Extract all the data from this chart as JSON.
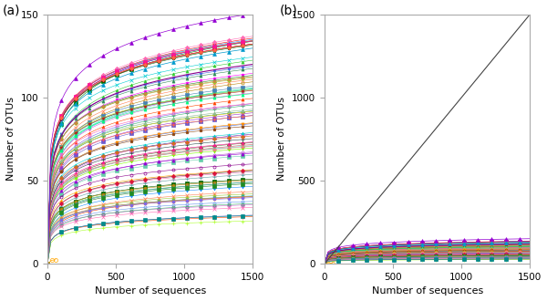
{
  "title_a": "(a)",
  "title_b": "(b)",
  "xlabel": "Number of sequences",
  "ylabel": "Number of OTUs",
  "xlim": [
    0,
    1500
  ],
  "ylim_a": [
    0,
    150
  ],
  "ylim_b": [
    0,
    1500
  ],
  "x_ticks": [
    0,
    500,
    1000,
    1500
  ],
  "y_ticks_a": [
    0,
    50,
    100,
    150
  ],
  "y_ticks_b": [
    0,
    500,
    1000,
    1500
  ],
  "n_curves": 85,
  "n_points": 60,
  "x_max": 1500,
  "background": "#ffffff",
  "colors": [
    "#8B008B",
    "#009ACD",
    "#800080",
    "#FF0000",
    "#008000",
    "#FF69B4",
    "#0000CD",
    "#FF8C00",
    "#006400",
    "#DC143C",
    "#1E90FF",
    "#32CD32",
    "#FF1493",
    "#00CED1",
    "#8B0000",
    "#FF6347",
    "#4169E1",
    "#2E8B57",
    "#FF00FF",
    "#00FA9A",
    "#B8860B",
    "#6495ED",
    "#228B22",
    "#FF7F50",
    "#4682B4",
    "#9ACD32",
    "#DA70D6",
    "#20B2AA",
    "#CD853F",
    "#7B68EE",
    "#3CB371",
    "#FF4500",
    "#6A5ACD",
    "#ADFF2F",
    "#FF69B4",
    "#008B8B",
    "#B22222",
    "#00FF7F",
    "#9932CC",
    "#FFD700",
    "#4169E1",
    "#8FBC8F",
    "#FF6347",
    "#191970",
    "#EE82EE",
    "#556B2F",
    "#FF8C00",
    "#00CED1",
    "#8B4513",
    "#BA55D3",
    "#2F4F4F",
    "#FF1493",
    "#66CDAA",
    "#CD5C5C",
    "#40E0D0",
    "#D2691E",
    "#7CFC00",
    "#9400D3",
    "#F08080",
    "#00FA9A",
    "#8B008B",
    "#FFA500",
    "#5F9EA0",
    "#FF69B4",
    "#006400",
    "#DC143C",
    "#1E90FF",
    "#32CD32",
    "#B8860B",
    "#FF4500",
    "#4682B4",
    "#9ACD32",
    "#228B22",
    "#FF7F50",
    "#6495ED",
    "#DA70D6",
    "#20B2AA",
    "#CD853F",
    "#7B68EE",
    "#3CB371",
    "#FF4500",
    "#6A5ACD",
    "#ADFF2F",
    "#FF69B4",
    "#008B8B"
  ],
  "markers_cycle": [
    "o",
    "^",
    "+",
    "x",
    "s",
    "D",
    "v",
    "^",
    "p",
    "o",
    "+",
    "^",
    "s",
    "x",
    "o",
    "D",
    "v",
    "^",
    "p",
    "o"
  ],
  "spine_color": "#aaaaaa",
  "diagonal_color": "#444444"
}
